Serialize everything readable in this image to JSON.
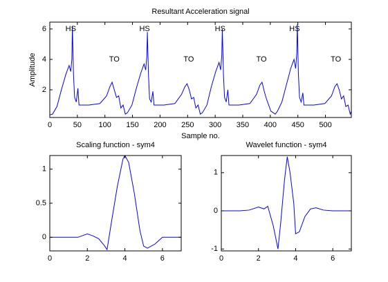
{
  "chart_data": [
    {
      "type": "line",
      "title": "Resultant Acceleration signal",
      "x_label": "Sample no.",
      "y_label": "Amplitude",
      "xlim": [
        0,
        547
      ],
      "ylim": [
        0.18,
        6.45
      ],
      "xticks": [
        0,
        50,
        100,
        150,
        200,
        250,
        300,
        350,
        400,
        450,
        500
      ],
      "yticks": [
        2,
        4,
        6
      ],
      "series": [
        {
          "color": "#0000ff",
          "x": [
            0,
            5,
            13,
            21,
            29,
            35,
            38,
            40,
            41,
            43,
            45,
            48,
            51,
            53,
            71,
            91,
            103,
            109,
            113,
            117,
            121,
            125,
            129,
            133,
            137,
            141,
            149,
            157,
            165,
            171,
            174,
            176,
            177,
            179,
            181,
            184,
            187,
            189,
            207,
            227,
            239,
            245,
            249,
            253,
            257,
            261,
            265,
            269,
            273,
            277,
            285,
            293,
            301,
            307,
            310,
            312,
            313,
            315,
            317,
            320,
            323,
            325,
            343,
            363,
            375,
            381,
            385,
            389,
            393,
            397,
            401,
            405,
            409,
            413,
            421,
            429,
            437,
            443,
            446,
            448,
            449,
            451,
            453,
            456,
            459,
            461,
            479,
            499,
            511,
            517,
            521,
            525,
            529,
            533,
            537,
            541,
            545,
            547
          ],
          "values": [
            0.35,
            0.4,
            0.9,
            2.0,
            3.0,
            3.6,
            3.2,
            4.0,
            6.2,
            3.0,
            1.5,
            1.2,
            2.1,
            1.0,
            1.0,
            1.1,
            1.6,
            2.2,
            2.5,
            2.0,
            1.5,
            1.6,
            0.8,
            1.0,
            0.4,
            0.5,
            1.0,
            2.1,
            3.1,
            3.7,
            3.3,
            4.2,
            5.8,
            3.0,
            1.4,
            1.2,
            1.9,
            1.0,
            1.0,
            1.1,
            1.7,
            2.2,
            2.4,
            2.0,
            1.4,
            1.5,
            0.8,
            1.0,
            0.4,
            0.5,
            1.0,
            2.2,
            3.2,
            3.8,
            3.3,
            4.3,
            6.0,
            3.0,
            1.5,
            1.2,
            2.0,
            1.0,
            1.0,
            1.1,
            1.7,
            2.3,
            2.5,
            1.9,
            1.4,
            1.0,
            0.6,
            0.5,
            0.4,
            0.6,
            1.2,
            2.3,
            3.4,
            4.0,
            3.4,
            4.4,
            6.3,
            3.0,
            1.5,
            1.2,
            1.8,
            1.0,
            1.0,
            1.1,
            1.6,
            2.2,
            2.4,
            2.0,
            1.4,
            1.6,
            0.9,
            1.0,
            0.4,
            0.6
          ]
        }
      ],
      "annotations": [
        {
          "text": "HS",
          "x": 38,
          "y": 6
        },
        {
          "text": "TO",
          "x": 117,
          "y": 4
        },
        {
          "text": "HS",
          "x": 172,
          "y": 6
        },
        {
          "text": "TO",
          "x": 252,
          "y": 4
        },
        {
          "text": "HS",
          "x": 309,
          "y": 6
        },
        {
          "text": "TO",
          "x": 384,
          "y": 4
        },
        {
          "text": "HS",
          "x": 444,
          "y": 6
        },
        {
          "text": "TO",
          "x": 519,
          "y": 4
        }
      ]
    },
    {
      "type": "line",
      "title": "Scaling function - sym4",
      "xlim": [
        0,
        7
      ],
      "ylim": [
        -0.2,
        1.2
      ],
      "xticks": [
        0,
        2,
        4,
        6
      ],
      "yticks": [
        0,
        0.5,
        1
      ],
      "series": [
        {
          "color": "#0000ff",
          "x": [
            0,
            1,
            1.5,
            2,
            2.3,
            2.6,
            2.9,
            3.05,
            3.3,
            3.6,
            3.9,
            4.0,
            4.2,
            4.5,
            4.8,
            5.0,
            5.2,
            5.6,
            6.0,
            6.2,
            7
          ],
          "values": [
            0,
            0,
            0,
            0.05,
            0.02,
            -0.02,
            -0.12,
            -0.18,
            0.25,
            0.75,
            1.15,
            1.2,
            1.1,
            0.65,
            0.1,
            -0.13,
            -0.16,
            -0.1,
            0,
            0,
            0
          ]
        }
      ]
    },
    {
      "type": "line",
      "title": "Wavelet function - sym4",
      "xlim": [
        0,
        7
      ],
      "ylim": [
        -1.05,
        1.45
      ],
      "xticks": [
        0,
        2,
        4,
        6
      ],
      "yticks": [
        -1,
        0,
        1
      ],
      "series": [
        {
          "color": "#0000ff",
          "x": [
            0,
            1,
            1.5,
            2,
            2.3,
            2.5,
            2.8,
            3.05,
            3.2,
            3.4,
            3.55,
            3.7,
            3.9,
            4.0,
            4.2,
            4.5,
            4.8,
            5.1,
            5.5,
            6,
            7
          ],
          "values": [
            0,
            0,
            0.02,
            0.1,
            0.05,
            0.12,
            -0.4,
            -1.0,
            -0.3,
            0.8,
            1.42,
            1.0,
            0.2,
            -0.6,
            -0.55,
            -0.15,
            0.05,
            0.08,
            0.02,
            0,
            0
          ]
        }
      ]
    }
  ]
}
